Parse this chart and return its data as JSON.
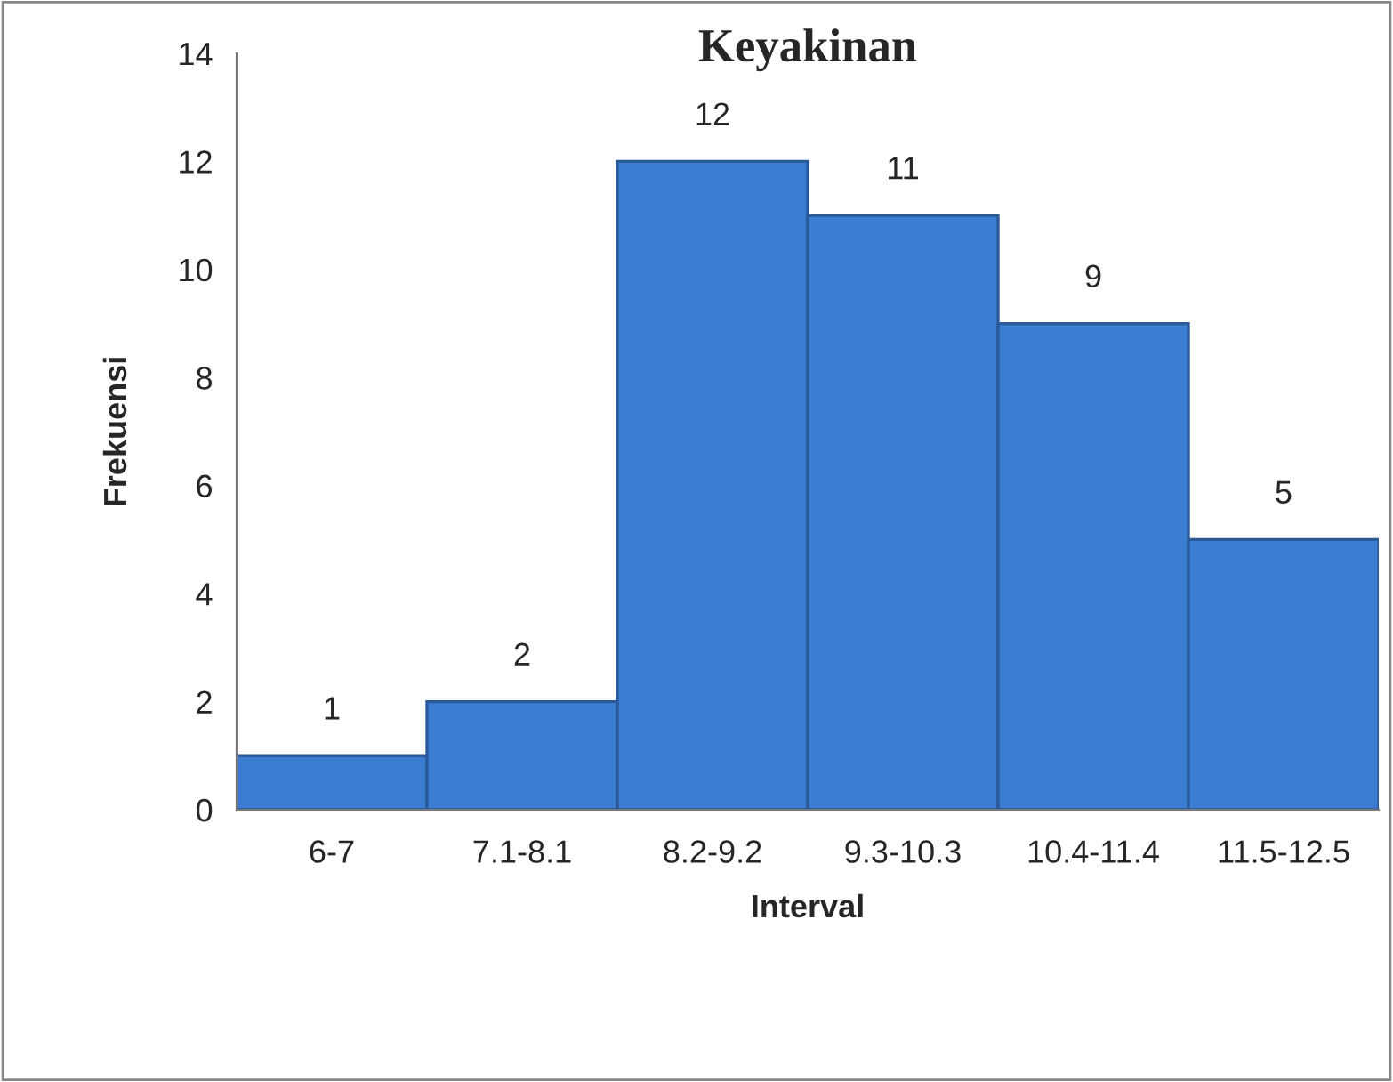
{
  "chart_data": {
    "type": "bar",
    "title": "Keyakinan",
    "xlabel": "Interval",
    "ylabel": "Frekuensi",
    "categories": [
      "6-7",
      "7.1-8.1",
      "8.2-9.2",
      "9.3-10.3",
      "10.4-11.4",
      "11.5-12.5"
    ],
    "values": [
      1,
      2,
      12,
      11,
      9,
      5
    ],
    "color": "#3b7dd1",
    "ylim": [
      0,
      14
    ],
    "yticks": [
      0,
      2,
      4,
      6,
      8,
      10,
      12,
      14
    ],
    "grid": false,
    "data_labels": true
  }
}
